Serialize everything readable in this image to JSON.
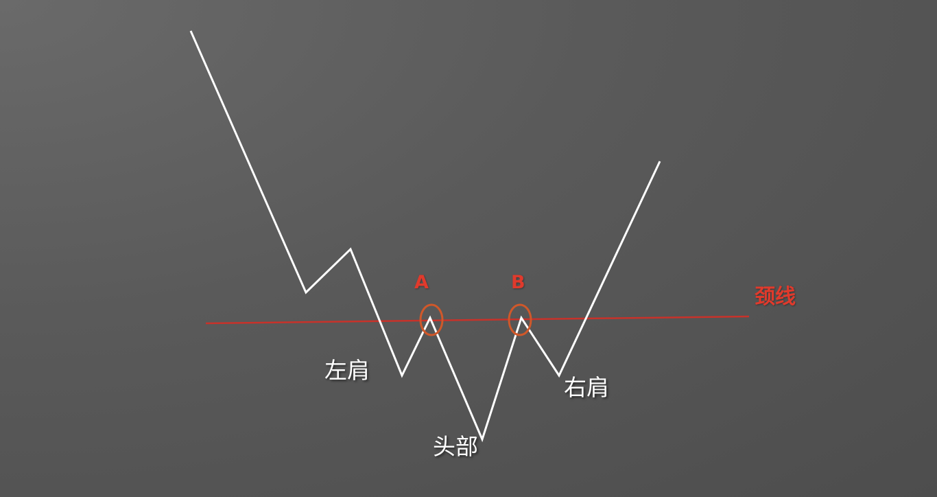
{
  "colors": {
    "price_line": "#ffffff",
    "neckline": "#c8322a",
    "marker": "#d0582a",
    "marker_text": "#e03a2c",
    "label_text": "#ffffff"
  },
  "labels": {
    "left_shoulder": "左肩",
    "head": "头部",
    "right_shoulder": "右肩",
    "neckline": "颈线",
    "point_a": "A",
    "point_b": "B"
  }
}
